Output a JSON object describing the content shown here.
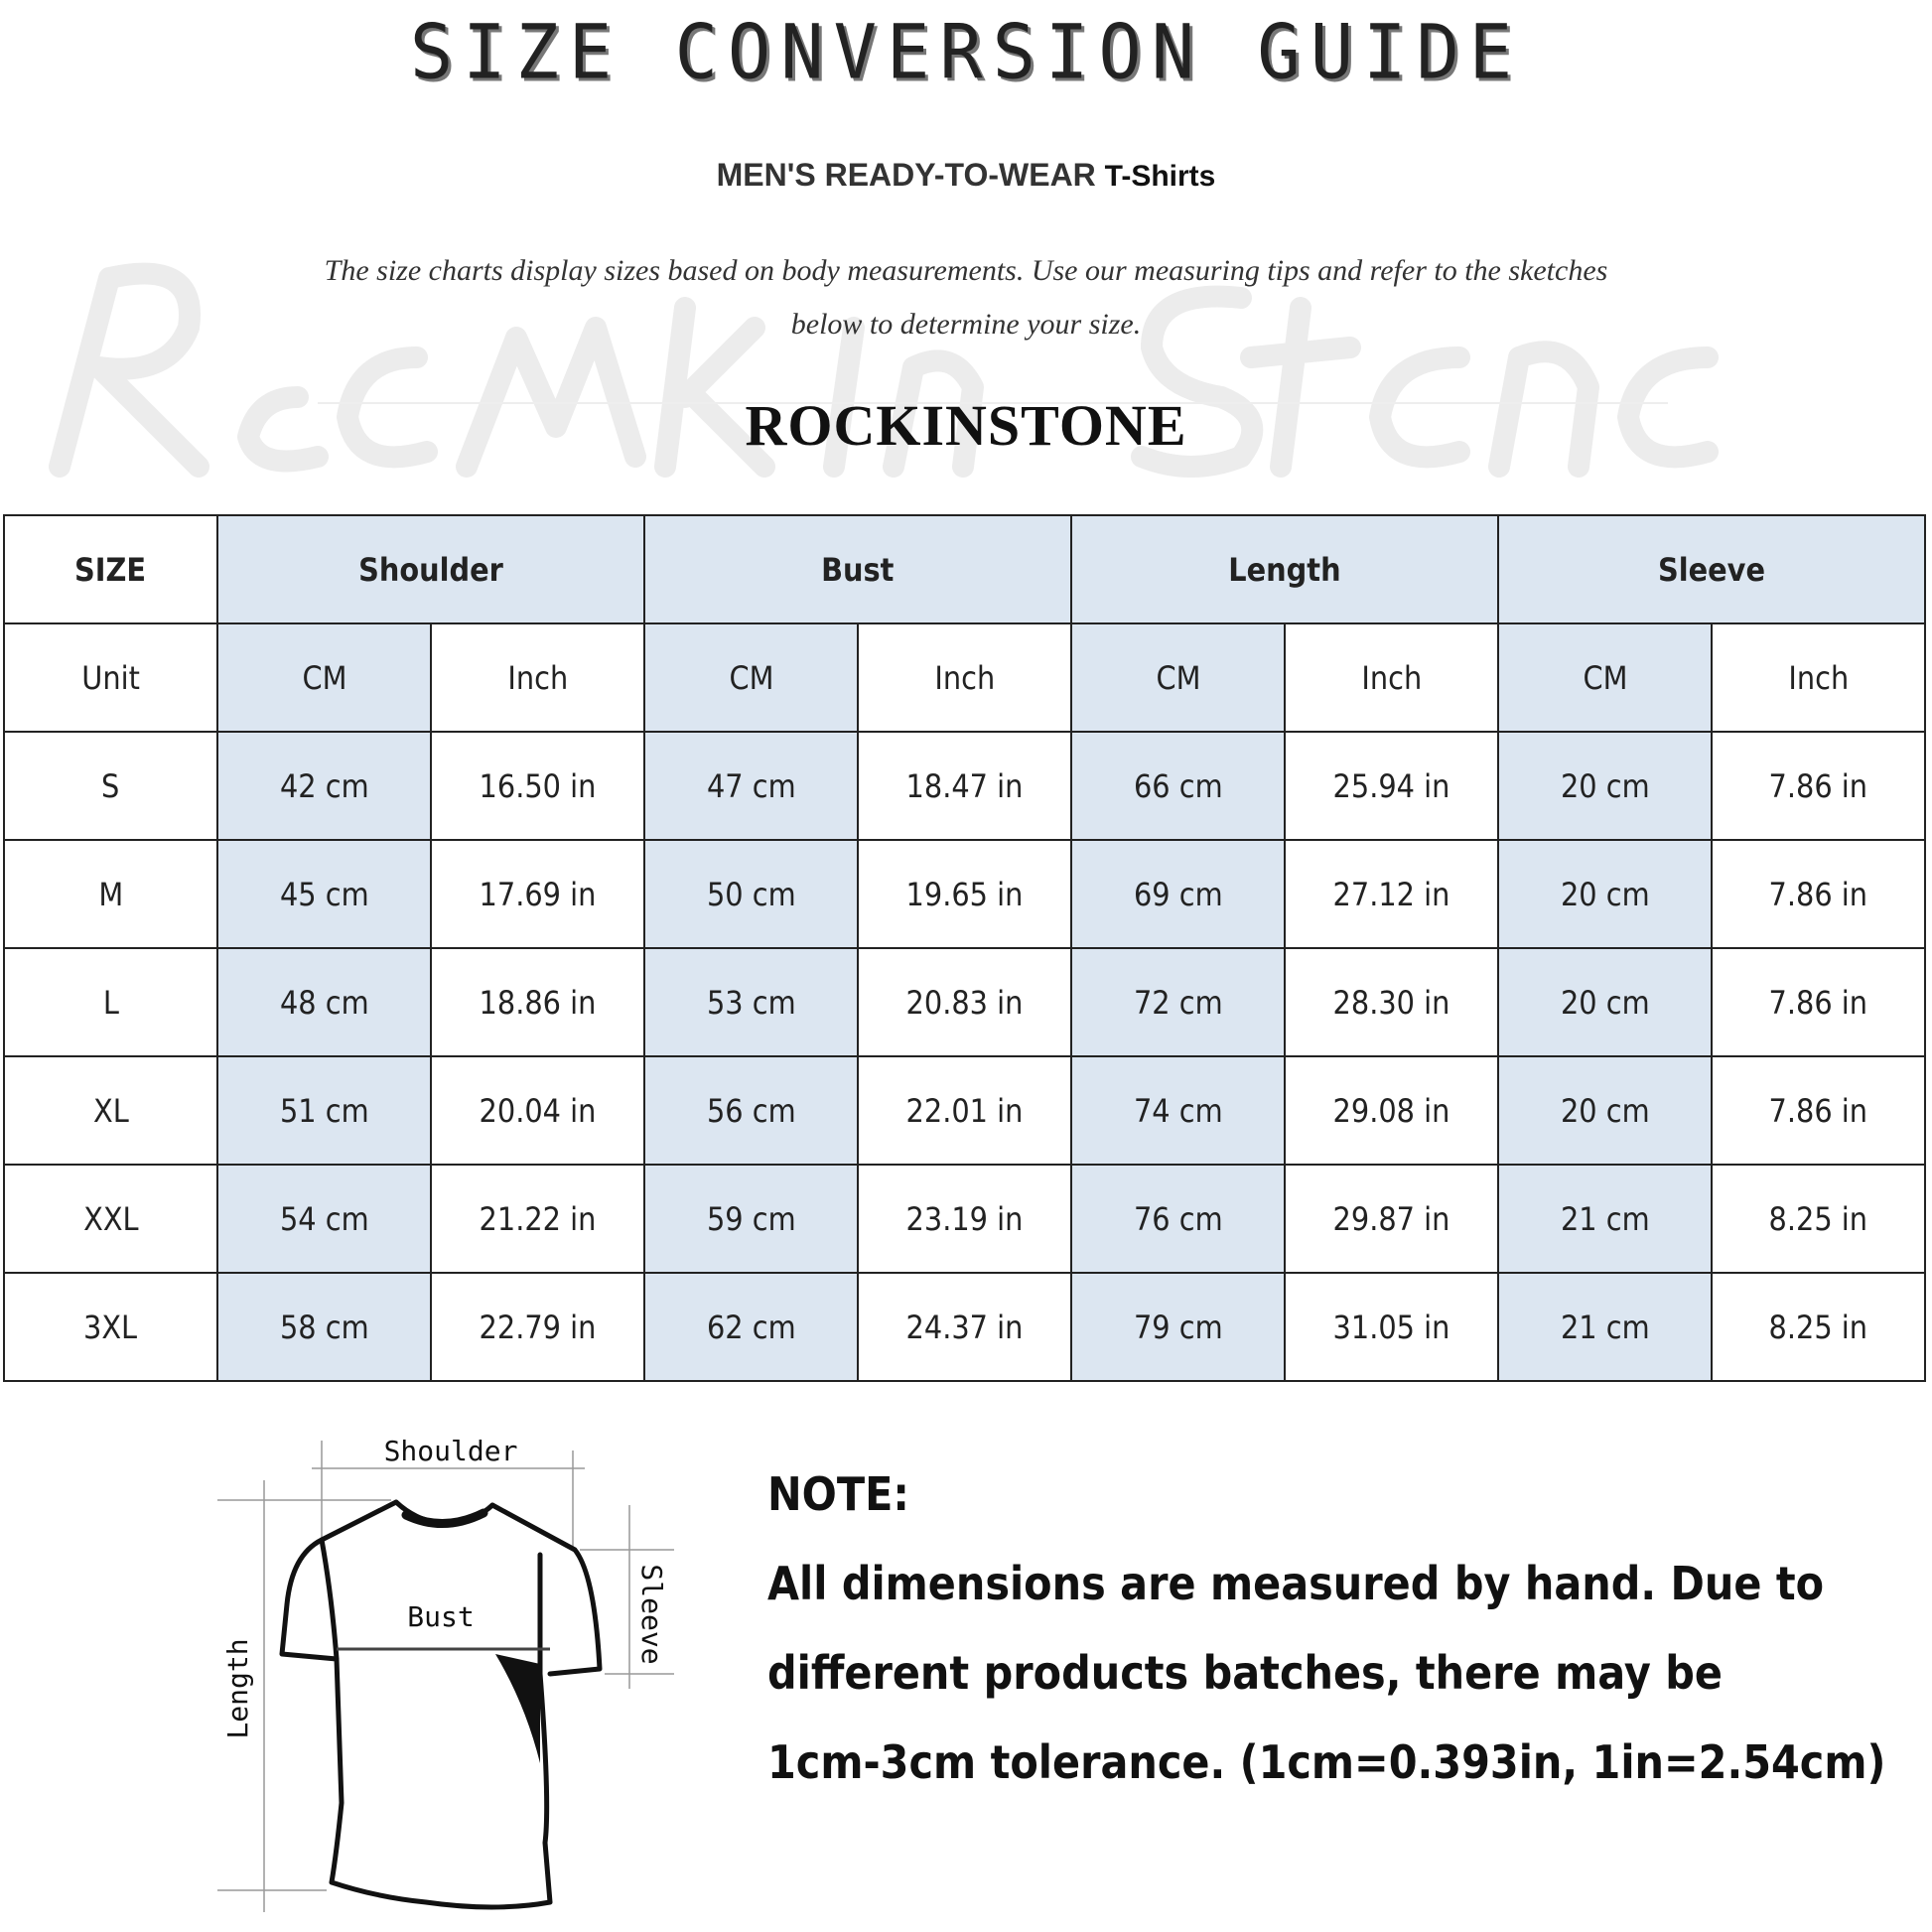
{
  "watermark": "Rock In Stone",
  "header": {
    "title": "SIZE CONVERSION GUIDE",
    "subtitle_main": "MEN'S READY-TO-WEAR",
    "subtitle_product": "T-Shirts",
    "intro_line1": "The size charts display sizes based on body measurements. Use our measuring tips and refer to the sketches",
    "intro_line2": "below to determine your size.",
    "brand": "ROCKINSTONE"
  },
  "colors": {
    "header_fill": "#dce6f1",
    "border": "#222222"
  },
  "table": {
    "size_label": "SIZE",
    "unit_label": "Unit",
    "groups": [
      "Shoulder",
      "Bust",
      "Length",
      "Sleeve"
    ],
    "units": [
      "CM",
      "Inch"
    ],
    "rows": [
      {
        "size": "S",
        "values": [
          "42 cm",
          "16.50 in",
          "47 cm",
          "18.47 in",
          "66 cm",
          "25.94 in",
          "20 cm",
          "7.86 in"
        ]
      },
      {
        "size": "M",
        "values": [
          "45 cm",
          "17.69 in",
          "50 cm",
          "19.65 in",
          "69 cm",
          "27.12 in",
          "20 cm",
          "7.86 in"
        ]
      },
      {
        "size": "L",
        "values": [
          "48 cm",
          "18.86 in",
          "53 cm",
          "20.83 in",
          "72 cm",
          "28.30 in",
          "20 cm",
          "7.86 in"
        ]
      },
      {
        "size": "XL",
        "values": [
          "51 cm",
          "20.04 in",
          "56 cm",
          "22.01 in",
          "74 cm",
          "29.08 in",
          "20 cm",
          "7.86 in"
        ]
      },
      {
        "size": "XXL",
        "values": [
          "54 cm",
          "21.22 in",
          "59 cm",
          "23.19 in",
          "76 cm",
          "29.87 in",
          "21 cm",
          "8.25 in"
        ]
      },
      {
        "size": "3XL",
        "values": [
          "58 cm",
          "22.79 in",
          "62 cm",
          "24.37 in",
          "79 cm",
          "31.05 in",
          "21 cm",
          "8.25 in"
        ]
      }
    ]
  },
  "diagram": {
    "shoulder": "Shoulder",
    "bust": "Bust",
    "length": "Length",
    "sleeve": "Sleeve"
  },
  "note": {
    "heading": "NOTE:",
    "lines": [
      "All dimensions are measured by hand. Due to",
      "different products batches, there may be",
      "1cm-3cm tolerance. (1cm=0.393in, 1in=2.54cm)"
    ]
  }
}
